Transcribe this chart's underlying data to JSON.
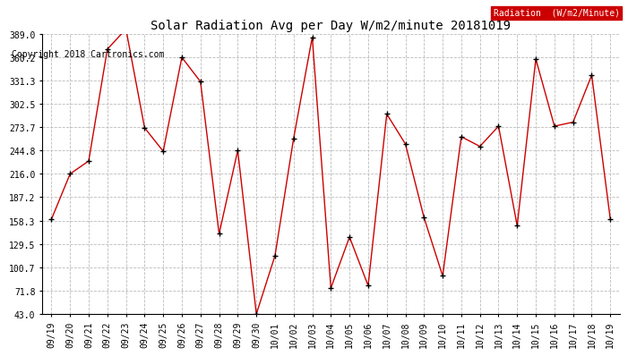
{
  "title": "Solar Radiation Avg per Day W/m2/minute 20181019",
  "copyright_text": "Copyright 2018 Cartronics.com",
  "legend_label": "Radiation  (W/m2/Minute)",
  "labels": [
    "09/19",
    "09/20",
    "09/21",
    "09/22",
    "09/23",
    "09/24",
    "09/25",
    "09/26",
    "09/27",
    "09/28",
    "09/29",
    "09/30",
    "10/01",
    "10/02",
    "10/03",
    "10/04",
    "10/05",
    "10/06",
    "10/07",
    "10/08",
    "10/09",
    "10/10",
    "10/11",
    "10/12",
    "10/13",
    "10/14",
    "10/15",
    "10/16",
    "10/17",
    "10/18",
    "10/19"
  ],
  "values": [
    160,
    216,
    232,
    370,
    395,
    273,
    244,
    360,
    330,
    142,
    245,
    43,
    115,
    260,
    385,
    75,
    138,
    78,
    290,
    253,
    162,
    90,
    262,
    250,
    275,
    152,
    358,
    275,
    280,
    338,
    160
  ],
  "y_ticks": [
    43.0,
    71.8,
    100.7,
    129.5,
    158.3,
    187.2,
    216.0,
    244.8,
    273.7,
    302.5,
    331.3,
    360.2,
    389.0
  ],
  "ylim": [
    43.0,
    389.0
  ],
  "line_color": "#cc0000",
  "marker_color": "#000000",
  "background_color": "#ffffff",
  "grid_color": "#bbbbbb",
  "title_fontsize": 10,
  "copyright_fontsize": 7,
  "tick_fontsize": 7,
  "legend_bg": "#cc0000",
  "legend_text_color": "#ffffff",
  "legend_fontsize": 7
}
